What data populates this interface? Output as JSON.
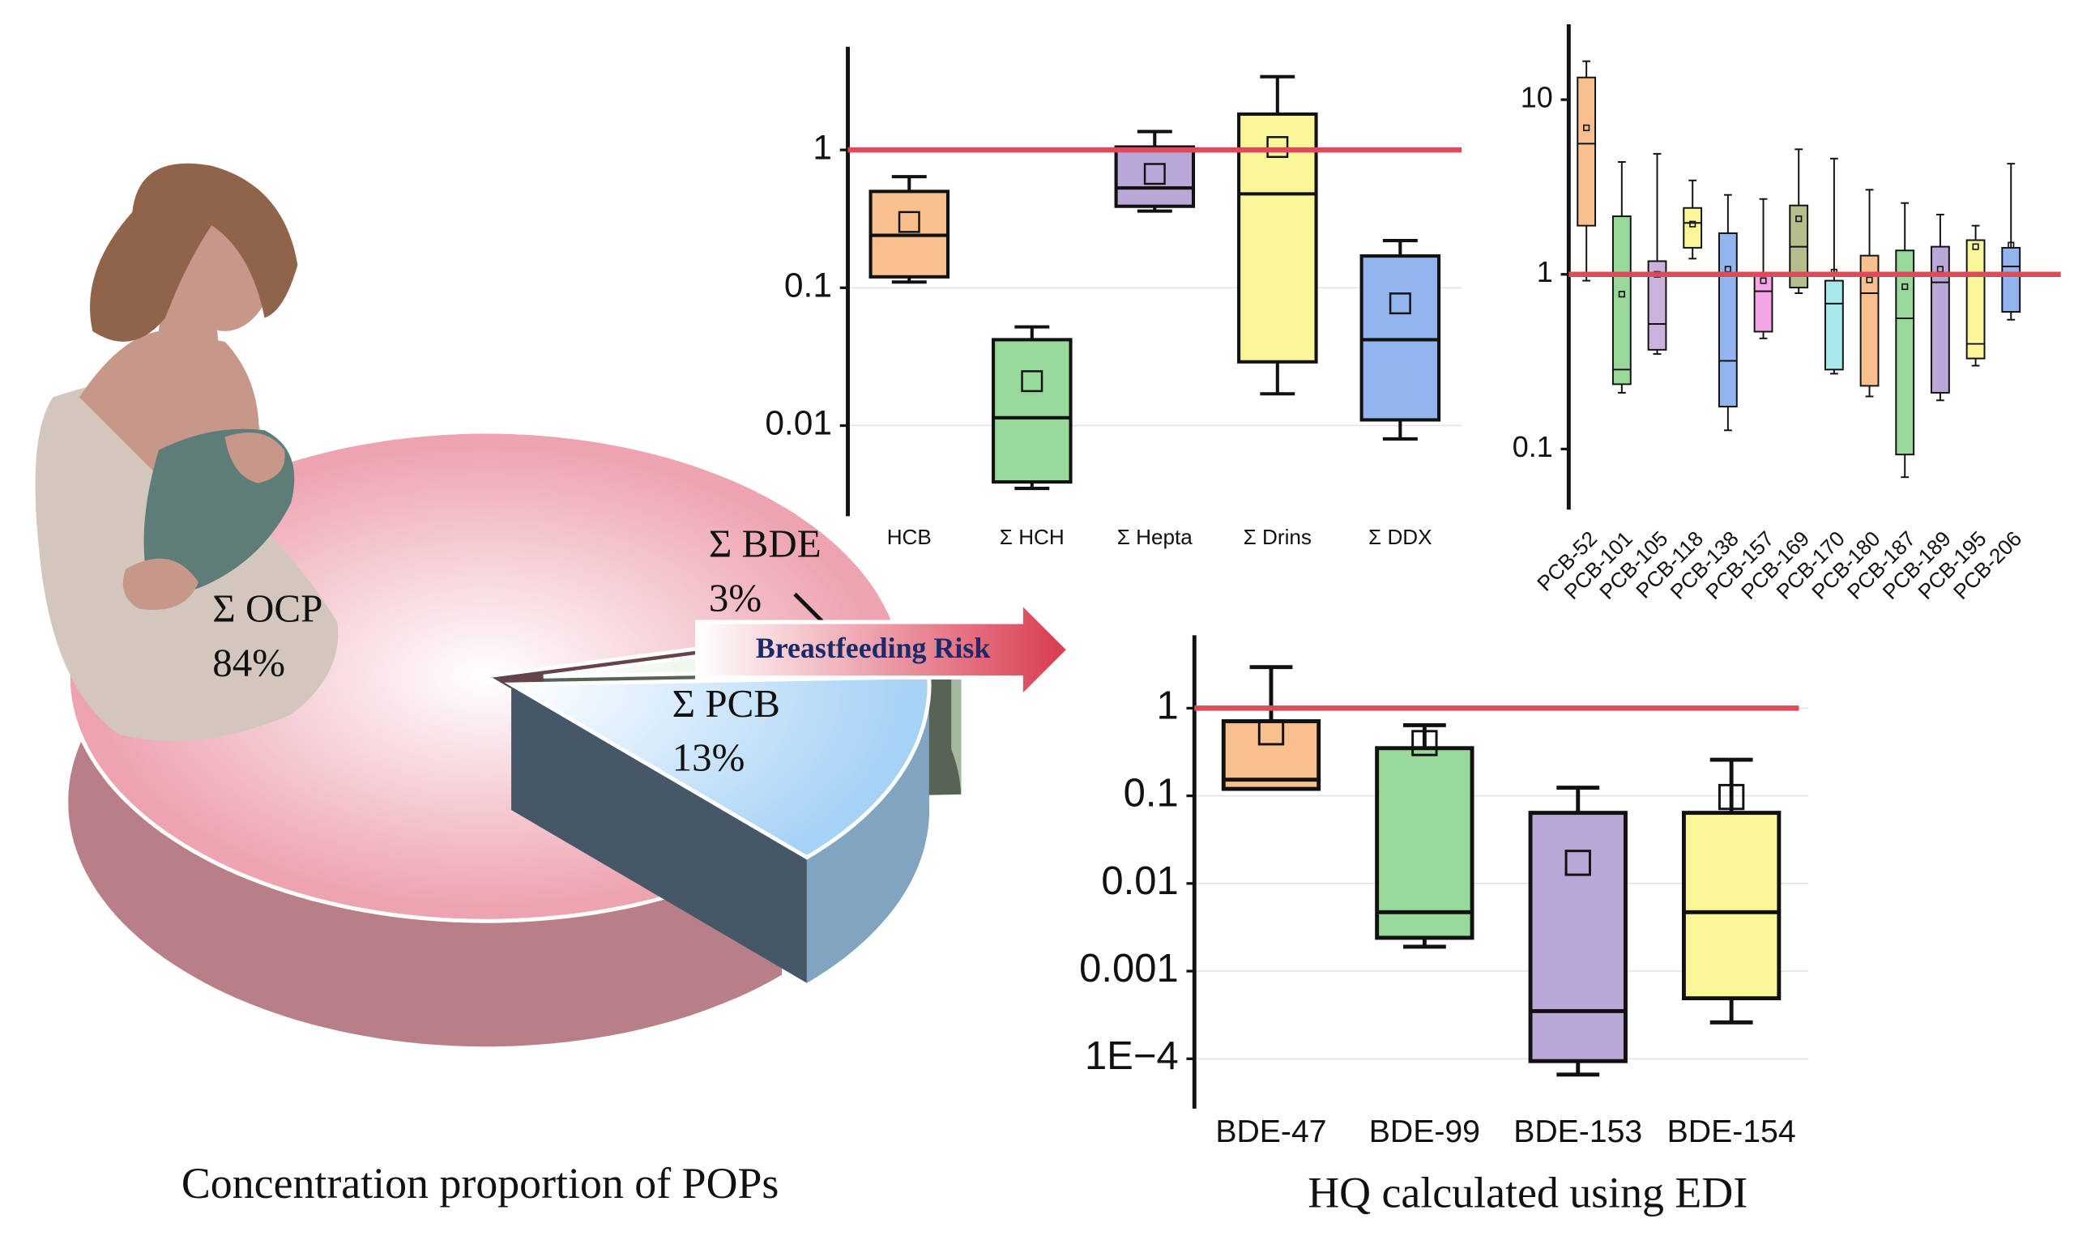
{
  "annotation": "Breastfeeding Risk",
  "chart_data": [
    {
      "type": "pie",
      "title": "Concentration proportion of POPs",
      "categories": [
        "Σ OCP",
        "Σ BDE",
        "Σ PCB"
      ],
      "values": [
        84,
        3,
        13
      ],
      "value_labels": [
        "84%",
        "3%",
        "13%"
      ],
      "colors": [
        "#eda3b0",
        "#d3ebcb",
        "#a6d2f6"
      ]
    },
    {
      "type": "box",
      "log_scale": true,
      "grid": true,
      "reference_line": 1,
      "reference_color": "#dc4a5c",
      "categories": [
        "HCB",
        "Σ HCH",
        "Σ Hepta",
        "Σ Drins",
        "Σ DDX"
      ],
      "whishi": [
        0.64,
        0.052,
        1.36,
        3.4,
        0.22
      ],
      "q3": [
        0.5,
        0.042,
        1.05,
        1.82,
        0.17
      ],
      "median": [
        0.24,
        0.0114,
        0.53,
        0.48,
        0.042
      ],
      "q1": [
        0.12,
        0.0039,
        0.39,
        0.029,
        0.011
      ],
      "whislo": [
        0.11,
        0.0035,
        0.36,
        0.017,
        0.008
      ],
      "mean": [
        0.3,
        0.021,
        0.67,
        1.05,
        0.077
      ],
      "colors": [
        "#f9c08f",
        "#98d89a",
        "#b9a7d8",
        "#fbf798",
        "#92b5f0"
      ],
      "ylim": [
        0.0022,
        5.6
      ],
      "yticks": [
        0.01,
        0.1,
        1
      ]
    },
    {
      "type": "box",
      "log_scale": true,
      "grid": false,
      "reference_line": 1,
      "reference_color": "#dc4a5c",
      "categories": [
        "PCB-52",
        "PCB-101",
        "PCB-105",
        "PCB-118",
        "PCB-138",
        "PCB-157",
        "PCB-169",
        "PCB-170",
        "PCB-180",
        "PCB-187",
        "PCB-189",
        "PCB-195",
        "PCB-206"
      ],
      "whishi": [
        16.6,
        4.4,
        4.9,
        3.45,
        2.85,
        2.7,
        5.2,
        4.6,
        3.05,
        2.56,
        2.2,
        1.9,
        4.3
      ],
      "q3": [
        13.4,
        2.15,
        1.19,
        2.4,
        1.72,
        0.98,
        2.48,
        0.92,
        1.28,
        1.37,
        1.44,
        1.57,
        1.42
      ],
      "median": [
        5.6,
        0.285,
        0.52,
        1.97,
        0.32,
        0.8,
        1.44,
        0.68,
        0.78,
        0.56,
        0.9,
        0.4,
        1.11
      ],
      "q1": [
        1.9,
        0.235,
        0.37,
        1.42,
        0.175,
        0.47,
        0.84,
        0.285,
        0.23,
        0.093,
        0.21,
        0.33,
        0.61
      ],
      "whislo": [
        0.92,
        0.21,
        0.35,
        1.23,
        0.128,
        0.43,
        0.78,
        0.27,
        0.2,
        0.069,
        0.19,
        0.3,
        0.55
      ],
      "mean": [
        6.9,
        0.77,
        1.0,
        1.94,
        1.07,
        0.92,
        2.08,
        1.03,
        0.93,
        0.85,
        1.07,
        1.44,
        1.47
      ],
      "colors": [
        "#f9c08f",
        "#98d89a",
        "#c9b3dc",
        "#fbf798",
        "#92b5f0",
        "#f3a6e6",
        "#b4bd8c",
        "#a8e8ea",
        "#f9c08f",
        "#98d89a",
        "#b9a7d8",
        "#fbf798",
        "#92b5f0"
      ],
      "ylim": [
        0.045,
        27
      ],
      "yticks": [
        0.1,
        1,
        10
      ]
    },
    {
      "type": "box",
      "log_scale": true,
      "grid": true,
      "reference_line": 1,
      "reference_color": "#dc4a5c",
      "title": "HQ calculated using EDI",
      "categories": [
        "BDE-47",
        "BDE-99",
        "BDE-153",
        "BDE-154"
      ],
      "whishi": [
        2.94,
        0.64,
        0.124,
        0.258
      ],
      "q3": [
        0.71,
        0.35,
        0.064,
        0.064
      ],
      "median": [
        0.153,
        0.0047,
        0.00035,
        0.0047
      ],
      "q1": [
        0.12,
        0.0024,
        9.4e-05,
        0.00049
      ],
      "whislo": [
        0.12,
        0.0019,
        6.6e-05,
        0.00026
      ],
      "mean": [
        0.53,
        0.4,
        0.0172,
        0.097
      ],
      "colors": [
        "#f9c08f",
        "#98d89a",
        "#b9a7d8",
        "#fbf798"
      ],
      "ylim": [
        2.7e-05,
        6.8
      ],
      "yticks": [
        {
          "value": 0.0001,
          "label": "1E−4"
        },
        0.001,
        0.01,
        0.1,
        1
      ]
    }
  ]
}
